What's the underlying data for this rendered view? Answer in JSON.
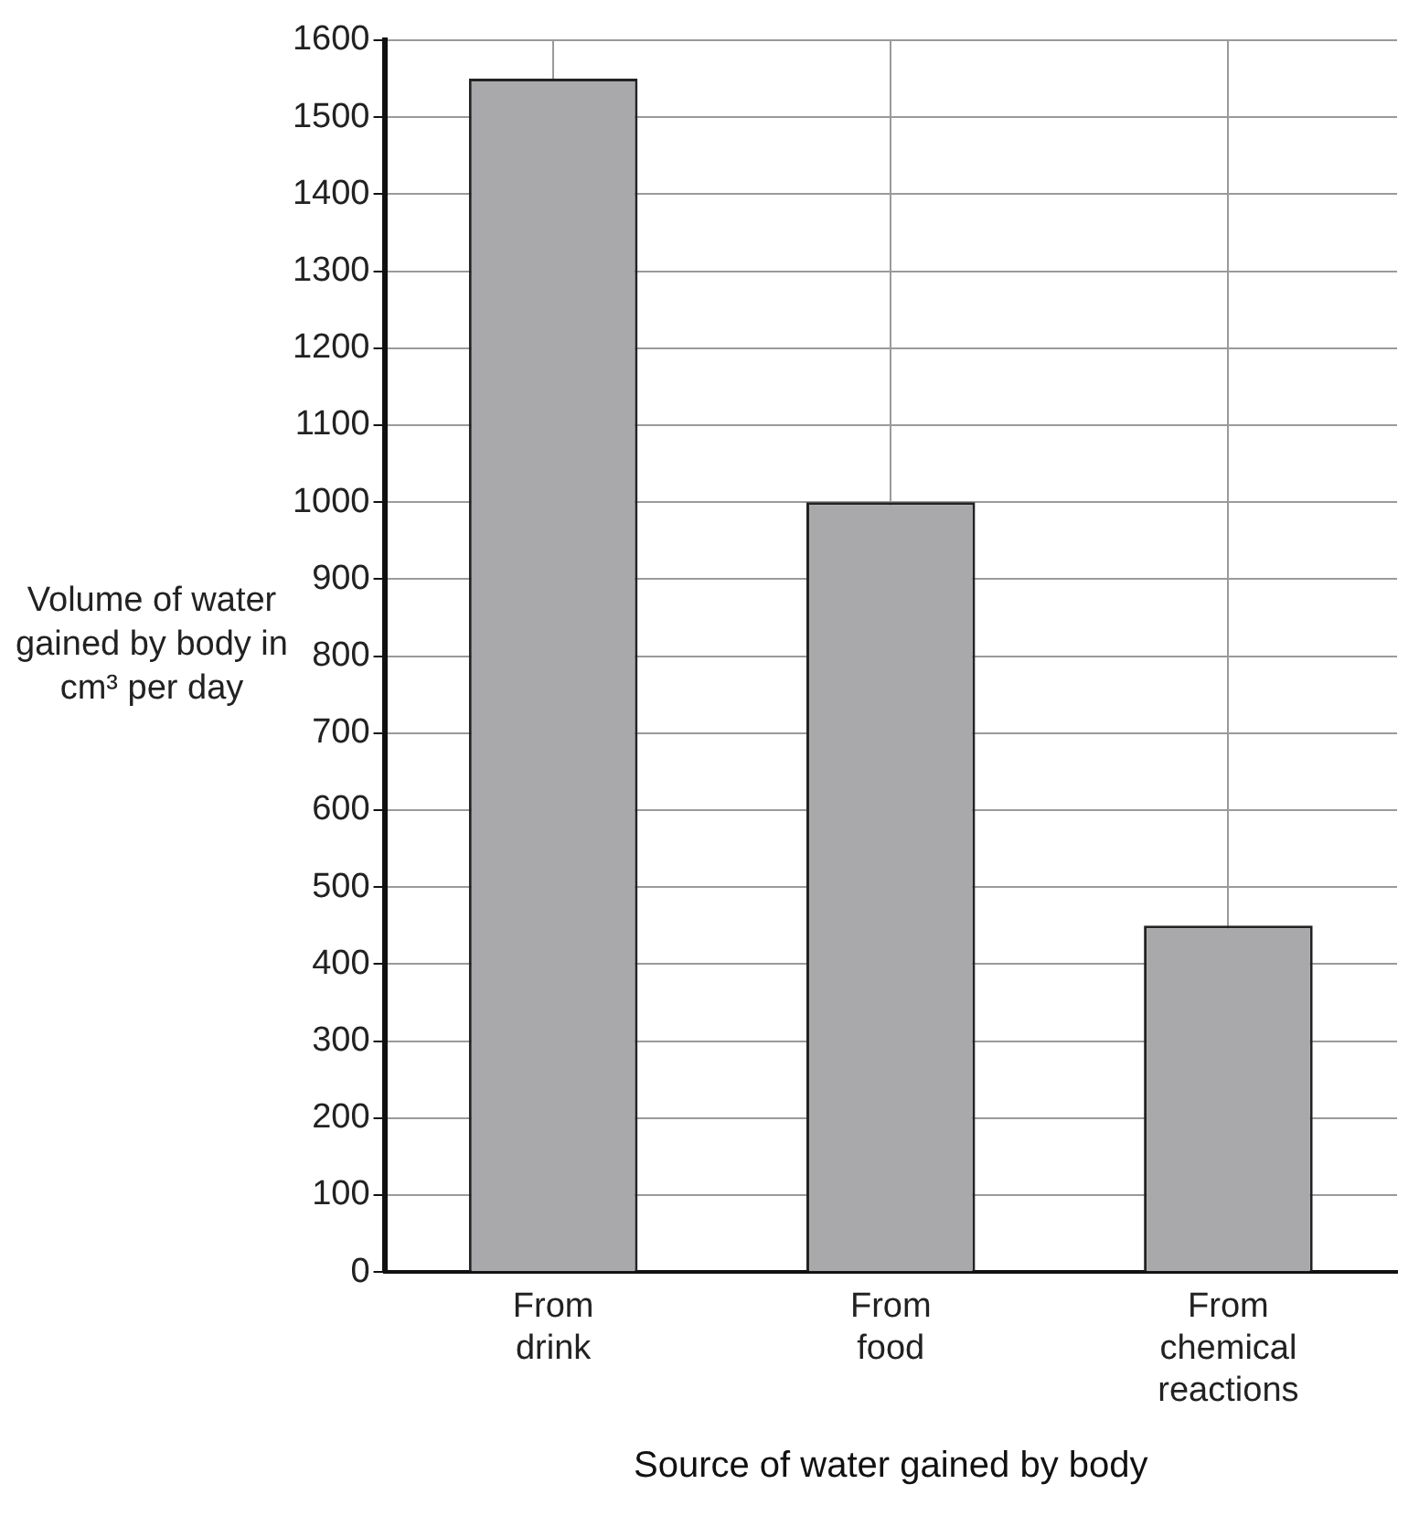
{
  "chart_data": {
    "type": "bar",
    "xlabel": "Source of water gained by body",
    "ylabel": "Volume of water gained by body in cm³ per day",
    "categories": [
      "From drink",
      "From food",
      "From chemical reactions"
    ],
    "values": [
      1550,
      1000,
      450
    ],
    "color": "#a9a9ab",
    "ylim": [
      0,
      1600
    ],
    "yticks": [
      0,
      100,
      200,
      300,
      400,
      500,
      600,
      700,
      800,
      900,
      1000,
      1100,
      1200,
      1300,
      1400,
      1500,
      1600
    ],
    "grid": true,
    "legend": false
  }
}
